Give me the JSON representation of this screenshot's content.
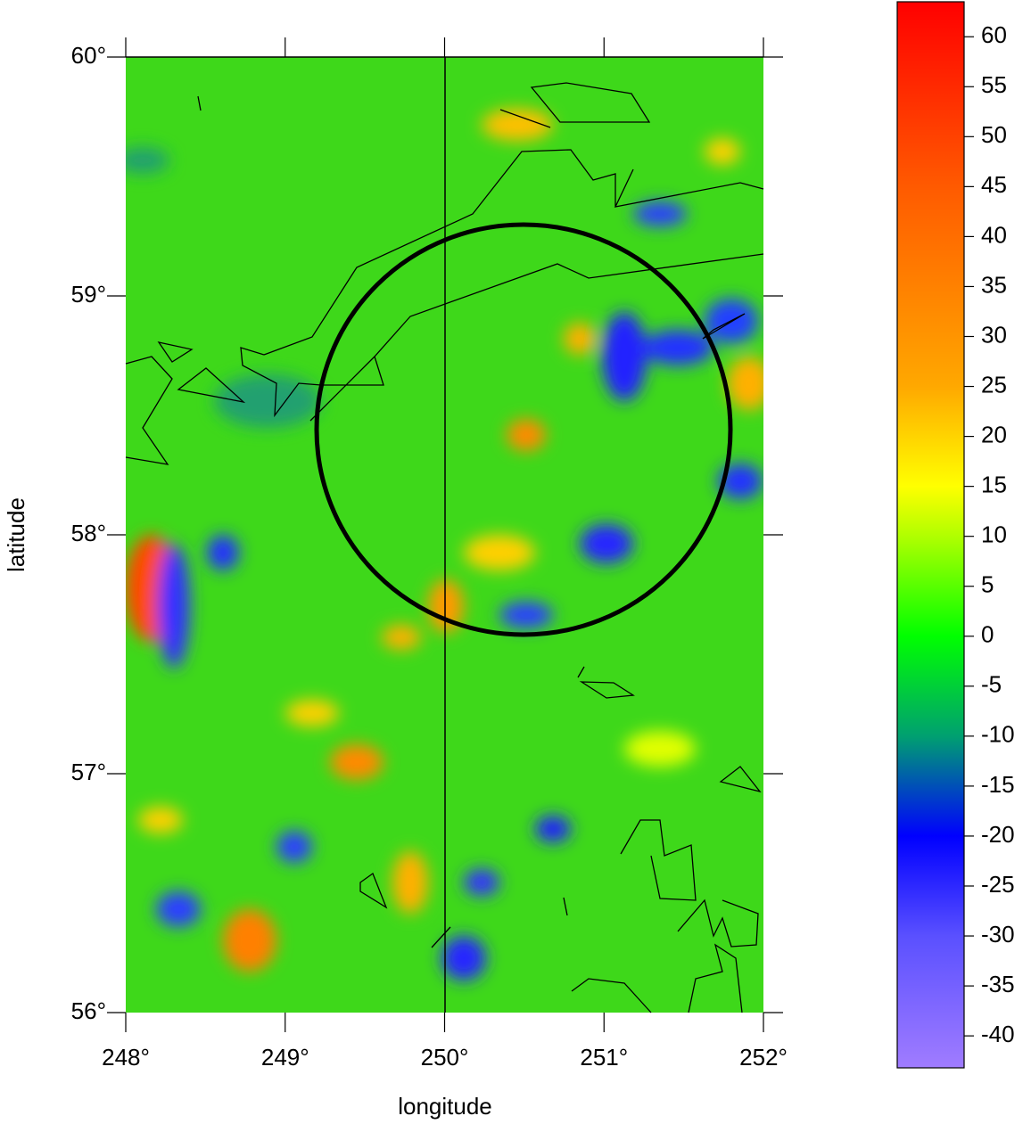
{
  "chart_data": {
    "type": "heatmap",
    "x_label": "longitude",
    "y_label": "latitude",
    "xlim": [
      248,
      252
    ],
    "xticks": [
      {
        "value": 248,
        "label": "248°"
      },
      {
        "value": 249,
        "label": "249°"
      },
      {
        "value": 250,
        "label": "250°"
      },
      {
        "value": 251,
        "label": "251°"
      },
      {
        "value": 252,
        "label": "252°"
      }
    ],
    "ylim": [
      56,
      60
    ],
    "yticks": [
      {
        "value": 56,
        "label": "56°"
      },
      {
        "value": 57,
        "label": "57°"
      },
      {
        "value": 58,
        "label": "58°"
      },
      {
        "value": 59,
        "label": "59°"
      },
      {
        "value": 60,
        "label": "60°"
      }
    ],
    "clim": [
      -43.2,
      63.5
    ],
    "cticks": [
      -40,
      -35,
      -30,
      -25,
      -20,
      -15,
      -10,
      -5,
      0,
      5,
      10,
      15,
      20,
      25,
      30,
      35,
      40,
      45,
      50,
      55,
      60
    ],
    "colorscale": [
      [
        -43.2,
        "#a07cff"
      ],
      [
        -30,
        "#5a50ff"
      ],
      [
        -20,
        "#0000ff"
      ],
      [
        -10,
        "#00a070"
      ],
      [
        0,
        "#00ff00"
      ],
      [
        10,
        "#b0ff00"
      ],
      [
        15,
        "#ffff00"
      ],
      [
        25,
        "#ffa800"
      ],
      [
        45,
        "#ff5a00"
      ],
      [
        63.5,
        "#ff0000"
      ]
    ]
  }
}
